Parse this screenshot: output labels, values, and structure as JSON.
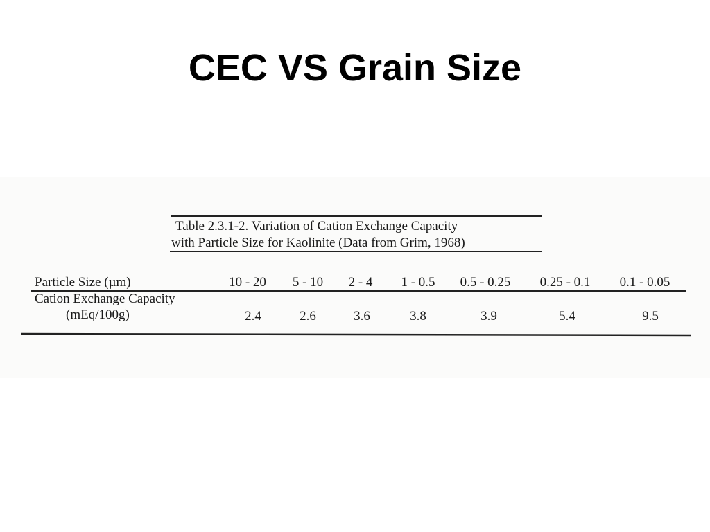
{
  "header": {
    "title": "CEC VS Grain Size"
  },
  "table": {
    "caption": [
      "Table 2.3.1-2.  Variation of Cation Exchange Capacity",
      "with Particle Size for Kaolinite (Data from Grim, 1968)"
    ],
    "row_labels": [
      "Particle Size (µm)",
      "Cation Exchange Capacity",
      "(mEq/100g)"
    ],
    "particle_sizes": [
      "10 - 20",
      "5 - 10",
      "2 - 4",
      "1 - 0.5",
      "0.5 - 0.25",
      "0.25 - 0.1",
      "0.1 - 0.05"
    ],
    "cec": [
      "2.4",
      "2.6",
      "3.6",
      "3.8",
      "3.9",
      "5.4",
      "9.5"
    ]
  }
}
